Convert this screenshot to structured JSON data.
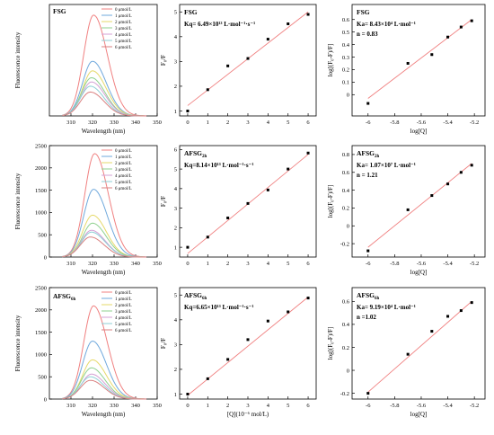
{
  "concentration_unit": "μmol/L",
  "chart_data": [
    {
      "type": "line",
      "panel": "spectrum",
      "row": 0,
      "annotation": "FSG",
      "xlabel": "Wavelength (nm)",
      "ylabel": "Fluorescence intensity",
      "xlim": [
        300,
        350
      ],
      "ylim": [
        0,
        2100
      ],
      "xticks": [
        310,
        320,
        330,
        340,
        350
      ],
      "yticks": [],
      "series": [
        {
          "name": "0",
          "color": "#f08080",
          "peak_x": 320.5,
          "peak_y": 1900,
          "values": []
        },
        {
          "name": "1",
          "color": "#6fa8dc",
          "peak_x": 320,
          "peak_y": 1030,
          "values": []
        },
        {
          "name": "2",
          "color": "#e6d96a",
          "peak_x": 320,
          "peak_y": 850,
          "values": []
        },
        {
          "name": "3",
          "color": "#8fd18f",
          "peak_x": 319.5,
          "peak_y": 720,
          "values": []
        },
        {
          "name": "4",
          "color": "#d4a0d4",
          "peak_x": 319.5,
          "peak_y": 640,
          "values": []
        },
        {
          "name": "5",
          "color": "#8fcfd6",
          "peak_x": 319,
          "peak_y": 560,
          "values": []
        },
        {
          "name": "6",
          "color": "#d98080",
          "peak_x": 319,
          "peak_y": 450,
          "values": []
        }
      ]
    },
    {
      "type": "scatter",
      "panel": "stern-volmer",
      "row": 0,
      "annotation_title": "FSG",
      "annotation_sub": "",
      "annotation_eq": "Kq= 6.49×10¹³ L·mol⁻¹·s⁻¹",
      "xlabel": "",
      "ylabel": "F₀/F",
      "xlim": [
        -0.4,
        6.4
      ],
      "ylim": [
        0.8,
        5.3
      ],
      "xticks": [
        0,
        1,
        2,
        3,
        4,
        5,
        6
      ],
      "yticks": [
        1,
        2,
        3,
        4,
        5
      ],
      "x": [
        0,
        1,
        2,
        3,
        4,
        5,
        6
      ],
      "y": [
        1.0,
        1.86,
        2.82,
        3.12,
        3.9,
        4.52,
        4.9
      ],
      "fit": {
        "x": [
          0,
          6
        ],
        "y": [
          1.22,
          5.0
        ]
      }
    },
    {
      "type": "scatter",
      "panel": "double-log",
      "row": 0,
      "annotation_title": "FSG",
      "annotation_sub": "",
      "annotation_eq": "Ka= 8.43×10⁴ L·mol⁻¹",
      "annotation_n": "n = 0.83",
      "xlabel": "log[Q]",
      "ylabel": "log[(F₀-F)/F]",
      "xlim": [
        -6.12,
        -5.12
      ],
      "ylim": [
        -0.17,
        0.72
      ],
      "xticks": [
        -6.0,
        -5.8,
        -5.6,
        -5.4,
        -5.2
      ],
      "yticks": [
        0.0,
        0.1,
        0.2,
        0.3,
        0.4,
        0.5,
        0.6
      ],
      "x": [
        -6.0,
        -5.7,
        -5.52,
        -5.4,
        -5.3,
        -5.22
      ],
      "y": [
        -0.07,
        0.25,
        0.32,
        0.46,
        0.54,
        0.59
      ],
      "fit": {
        "x": [
          -6.0,
          -5.22
        ],
        "y": [
          -0.03,
          0.6
        ]
      }
    },
    {
      "type": "line",
      "panel": "spectrum",
      "row": 1,
      "annotation": "",
      "xlabel": "Wavelength (nm)",
      "ylabel": "Fluorescence intensity",
      "xlim": [
        300,
        350
      ],
      "ylim": [
        0,
        2500
      ],
      "xticks": [
        310,
        320,
        330,
        340,
        350
      ],
      "yticks": [
        0,
        500,
        1000,
        1500,
        2000,
        2500
      ],
      "series": [
        {
          "name": "0",
          "color": "#f08080",
          "peak_x": 321,
          "peak_y": 2320,
          "values": []
        },
        {
          "name": "1",
          "color": "#6fa8dc",
          "peak_x": 320.5,
          "peak_y": 1520,
          "values": []
        },
        {
          "name": "2",
          "color": "#e6d96a",
          "peak_x": 320,
          "peak_y": 940,
          "values": []
        },
        {
          "name": "3",
          "color": "#8fd18f",
          "peak_x": 320,
          "peak_y": 760,
          "values": []
        },
        {
          "name": "4",
          "color": "#d4a0d4",
          "peak_x": 319.5,
          "peak_y": 600,
          "values": []
        },
        {
          "name": "5",
          "color": "#8fcfd6",
          "peak_x": 319.5,
          "peak_y": 560,
          "values": []
        },
        {
          "name": "6",
          "color": "#d98080",
          "peak_x": 319,
          "peak_y": 450,
          "values": []
        }
      ]
    },
    {
      "type": "scatter",
      "panel": "stern-volmer",
      "row": 1,
      "annotation_title": "AFSG",
      "annotation_sub": "2h",
      "annotation_eq": "Kq=8.14×10¹³ L·mol⁻¹·s⁻¹",
      "xlabel": "",
      "ylabel": "F₀/F",
      "xlim": [
        -0.4,
        6.4
      ],
      "ylim": [
        0.5,
        6.2
      ],
      "xticks": [
        0,
        1,
        2,
        3,
        4,
        5,
        6
      ],
      "yticks": [
        1,
        2,
        3,
        4,
        5,
        6
      ],
      "x": [
        0,
        1,
        2,
        3,
        4,
        5,
        6
      ],
      "y": [
        1.0,
        1.52,
        2.5,
        3.24,
        3.93,
        5.0,
        5.82
      ],
      "fit": {
        "x": [
          0,
          6
        ],
        "y": [
          0.68,
          5.75
        ]
      }
    },
    {
      "type": "scatter",
      "panel": "double-log",
      "row": 1,
      "annotation_title": "AFSG",
      "annotation_sub": "2h",
      "annotation_eq": "Ka= 1.07×10⁷ L·mol⁻¹",
      "annotation_n": "n = 1.21",
      "xlabel": "log[Q]",
      "ylabel": "log[(F₀-F)/F]",
      "xlim": [
        -6.12,
        -5.12
      ],
      "ylim": [
        -0.35,
        0.9
      ],
      "xticks": [
        -6.0,
        -5.8,
        -5.6,
        -5.4,
        -5.2
      ],
      "yticks": [
        -0.2,
        0.0,
        0.2,
        0.4,
        0.6,
        0.8
      ],
      "x": [
        -6.0,
        -5.7,
        -5.52,
        -5.4,
        -5.3,
        -5.22
      ],
      "y": [
        -0.28,
        0.18,
        0.34,
        0.47,
        0.6,
        0.68
      ],
      "fit": {
        "x": [
          -6.0,
          -5.22
        ],
        "y": [
          -0.24,
          0.7
        ]
      }
    },
    {
      "type": "line",
      "panel": "spectrum",
      "row": 2,
      "annotation": "AFSG6h",
      "xlabel": "Wavelength (nm)",
      "ylabel": "Fluorescence intensity",
      "xlim": [
        300,
        350
      ],
      "ylim": [
        0,
        2500
      ],
      "xticks": [
        310,
        320,
        330,
        340,
        350
      ],
      "yticks": [
        0,
        500,
        1000,
        1500,
        2000,
        2500
      ],
      "series": [
        {
          "name": "0",
          "color": "#f08080",
          "peak_x": 320.5,
          "peak_y": 2090,
          "values": []
        },
        {
          "name": "1",
          "color": "#6fa8dc",
          "peak_x": 320,
          "peak_y": 1300,
          "values": []
        },
        {
          "name": "2",
          "color": "#e6d96a",
          "peak_x": 320,
          "peak_y": 880,
          "values": []
        },
        {
          "name": "3",
          "color": "#8fd18f",
          "peak_x": 319.5,
          "peak_y": 700,
          "values": []
        },
        {
          "name": "4",
          "color": "#d4a0d4",
          "peak_x": 319.5,
          "peak_y": 560,
          "values": []
        },
        {
          "name": "5",
          "color": "#8fcfd6",
          "peak_x": 319,
          "peak_y": 500,
          "values": []
        },
        {
          "name": "6",
          "color": "#d98080",
          "peak_x": 319,
          "peak_y": 420,
          "values": []
        }
      ]
    },
    {
      "type": "scatter",
      "panel": "stern-volmer",
      "row": 2,
      "annotation_title": "AFSG",
      "annotation_sub": "6h",
      "annotation_eq": "Kq=6.65×10¹³ L·mol⁻¹·s⁻¹",
      "xlabel": "[Q](10⁻⁶ mol/L)",
      "ylabel": "F₀/F",
      "xlim": [
        -0.4,
        6.4
      ],
      "ylim": [
        0.8,
        5.3
      ],
      "xticks": [
        0,
        1,
        2,
        3,
        4,
        5,
        6
      ],
      "yticks": [
        1,
        2,
        3,
        4,
        5
      ],
      "x": [
        0,
        1,
        2,
        3,
        4,
        5,
        6
      ],
      "y": [
        1.0,
        1.62,
        2.4,
        3.2,
        3.95,
        4.32,
        4.88
      ],
      "fit": {
        "x": [
          0,
          6
        ],
        "y": [
          0.95,
          4.92
        ]
      }
    },
    {
      "type": "scatter",
      "panel": "double-log",
      "row": 2,
      "annotation_title": "AFSG",
      "annotation_sub": "6h",
      "annotation_eq": "Ka= 9.19×10⁴ L·mol⁻¹",
      "annotation_n": "n =1.02",
      "xlabel": "log[Q]",
      "ylabel": "log[(F₀-F)/F]",
      "xlim": [
        -6.12,
        -5.12
      ],
      "ylim": [
        -0.25,
        0.72
      ],
      "xticks": [
        -6.0,
        -5.8,
        -5.6,
        -5.4,
        -5.2
      ],
      "yticks": [
        -0.2,
        0.0,
        0.2,
        0.4,
        0.6
      ],
      "x": [
        -6.0,
        -5.7,
        -5.52,
        -5.4,
        -5.3,
        -5.22
      ],
      "y": [
        -0.2,
        0.14,
        0.34,
        0.47,
        0.52,
        0.59
      ],
      "fit": {
        "x": [
          -6.0,
          -5.22
        ],
        "y": [
          -0.19,
          0.6
        ]
      }
    }
  ]
}
